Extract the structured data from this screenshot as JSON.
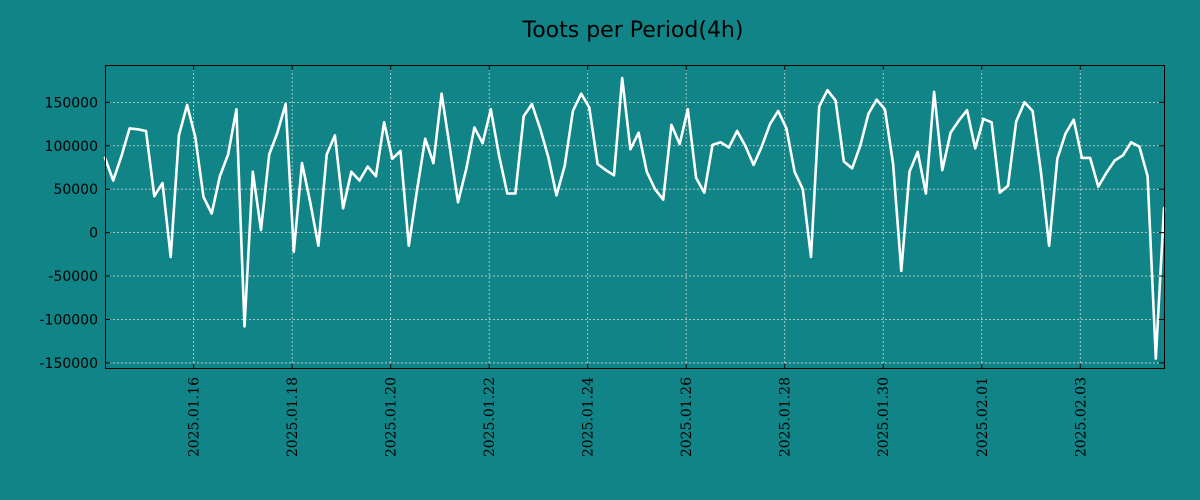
{
  "chart_data": {
    "type": "line",
    "title": "Toots per Period(4h)",
    "xlabel": "",
    "ylabel": "",
    "colors": {
      "background": "#108486",
      "plot_background": "#108486",
      "line": "#ffffff",
      "grid": "#c8d8d8"
    },
    "grid": true,
    "y_ticks": [
      150000,
      100000,
      50000,
      0,
      -50000,
      -100000,
      -150000
    ],
    "y_tick_labels": [
      "150000",
      "100000",
      "50000",
      "0",
      "-50000",
      "-100000",
      "-150000"
    ],
    "x_tick_labels": [
      "2025.01.16",
      "2025.01.18",
      "2025.01.20",
      "2025.01.22",
      "2025.01.24",
      "2025.01.26",
      "2025.01.28",
      "2025.01.30",
      "2025.02.01",
      "2025.02.03"
    ],
    "x_tick_days": [
      1.8,
      3.8,
      5.8,
      7.8,
      9.8,
      11.8,
      13.8,
      15.8,
      17.8,
      19.8
    ],
    "xlim_days": [
      0,
      21.5
    ],
    "ylim": [
      -157000,
      193000
    ],
    "series": [
      {
        "name": "toots",
        "x_days": [
          0.0,
          0.167,
          0.333,
          0.5,
          0.667,
          0.833,
          1.0,
          1.167,
          1.333,
          1.5,
          1.667,
          1.833,
          2.0,
          2.167,
          2.333,
          2.5,
          2.667,
          2.833,
          3.0,
          3.167,
          3.333,
          3.5,
          3.667,
          3.833,
          4.0,
          4.167,
          4.333,
          4.5,
          4.667,
          4.833,
          5.0,
          5.167,
          5.333,
          5.5,
          5.667,
          5.833,
          6.0,
          6.167,
          6.333,
          6.5,
          6.667,
          6.833,
          7.0,
          7.167,
          7.333,
          7.5,
          7.667,
          7.833,
          8.0,
          8.167,
          8.333,
          8.5,
          8.667,
          8.833,
          9.0,
          9.167,
          9.333,
          9.5,
          9.667,
          9.833,
          10.0,
          10.167,
          10.333,
          10.5,
          10.667,
          10.833,
          11.0,
          11.167,
          11.333,
          11.5,
          11.667,
          11.833,
          12.0,
          12.167,
          12.333,
          12.5,
          12.667,
          12.833,
          13.0,
          13.167,
          13.333,
          13.5,
          13.667,
          13.833,
          14.0,
          14.167,
          14.333,
          14.5,
          14.667,
          14.833,
          15.0,
          15.167,
          15.333,
          15.5,
          15.667,
          15.833,
          16.0,
          16.167,
          16.333,
          16.5,
          16.667,
          16.833,
          17.0,
          17.167,
          17.333,
          17.5,
          17.667,
          17.833,
          18.0,
          18.167,
          18.333,
          18.5,
          18.667,
          18.833,
          19.0,
          19.167,
          19.333,
          19.5,
          19.667,
          19.833,
          20.0,
          20.167,
          20.333,
          20.5,
          20.667,
          20.833,
          21.0,
          21.167,
          21.333,
          21.5
        ],
        "values": [
          86000,
          60000,
          88000,
          120000,
          119000,
          117000,
          42000,
          57000,
          -28000,
          112000,
          147000,
          110000,
          41000,
          22000,
          65000,
          90000,
          142000,
          -108000,
          70000,
          3000,
          90000,
          115000,
          148000,
          -22000,
          80000,
          35000,
          -15000,
          90000,
          112000,
          28000,
          70000,
          60000,
          76000,
          65000,
          127000,
          85000,
          94000,
          -15000,
          48000,
          108000,
          80000,
          160000,
          98000,
          35000,
          73000,
          121000,
          103000,
          142000,
          89000,
          45000,
          45000,
          134000,
          148000,
          120000,
          87000,
          43000,
          77000,
          140000,
          160000,
          144000,
          79000,
          72000,
          66000,
          178000,
          96000,
          115000,
          70000,
          50000,
          38000,
          124000,
          102000,
          142000,
          63000,
          46000,
          101000,
          104000,
          98000,
          117000,
          100000,
          78000,
          99000,
          125000,
          140000,
          120000,
          70000,
          50000,
          -28000,
          145000,
          164000,
          152000,
          82000,
          74000,
          100000,
          137000,
          153000,
          142000,
          79000,
          -44000,
          70000,
          93000,
          45000,
          162000,
          72000,
          115000,
          129000,
          141000,
          97000,
          131000,
          127000,
          46000,
          54000,
          128000,
          150000,
          140000,
          70000,
          -15000,
          85000,
          114000,
          130000,
          86000,
          86000,
          53000,
          69000,
          83000,
          89000,
          104000,
          99000,
          65000,
          -145000,
          28000
        ]
      }
    ]
  }
}
